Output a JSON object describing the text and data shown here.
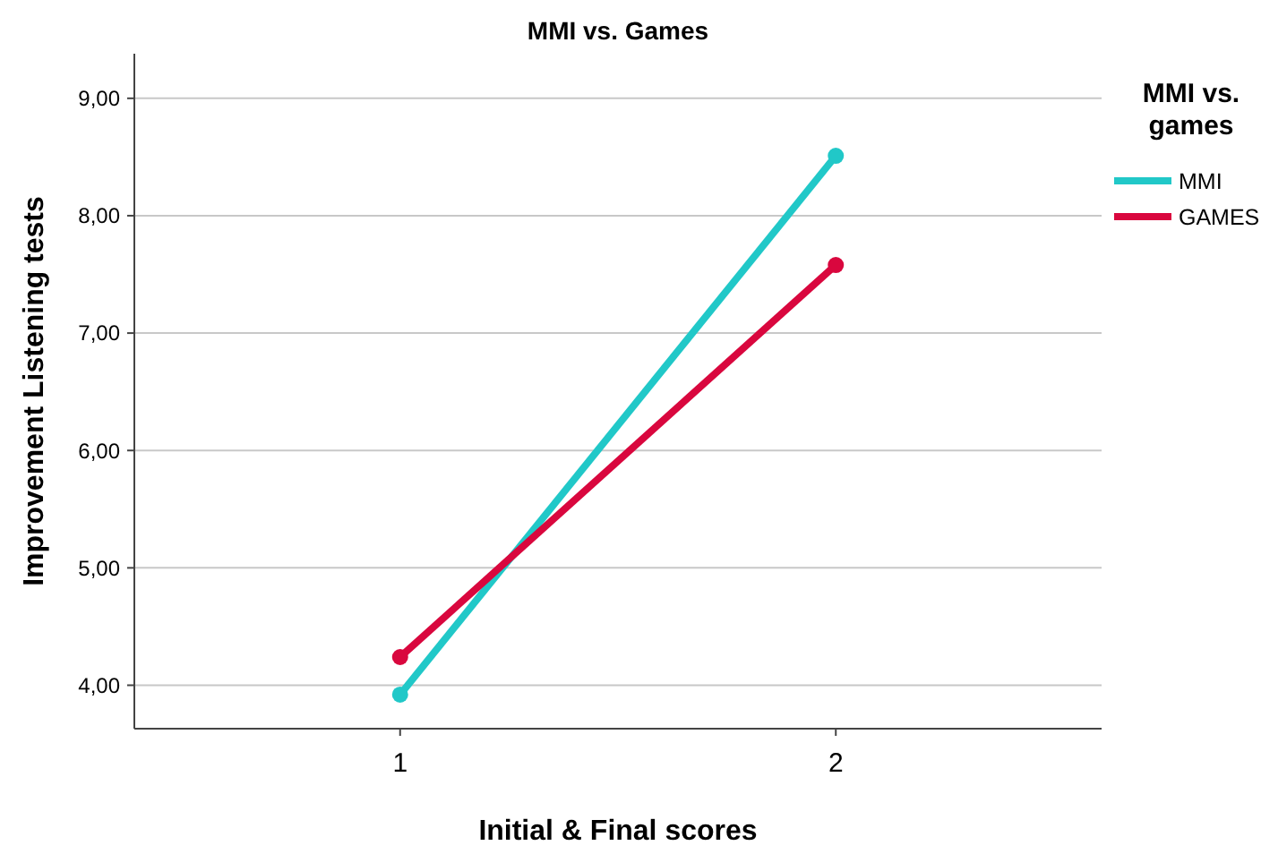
{
  "chart_data": {
    "type": "line",
    "title": "MMI vs. Games",
    "xlabel": "Initial & Final scores",
    "ylabel": "Improvement Listening tests",
    "legend_title": "MMI vs. games",
    "categories": [
      "1",
      "2"
    ],
    "series": [
      {
        "name": "MMI",
        "color": "#21c8c8",
        "values": [
          3.92,
          8.51
        ]
      },
      {
        "name": "GAMES",
        "color": "#d9073e",
        "values": [
          4.24,
          7.58
        ]
      }
    ],
    "ylim": [
      3.63,
      9.38
    ],
    "yticks": [
      {
        "value": 4,
        "label": "4,00"
      },
      {
        "value": 5,
        "label": "5,00"
      },
      {
        "value": 6,
        "label": "6,00"
      },
      {
        "value": 7,
        "label": "7,00"
      },
      {
        "value": 8,
        "label": "8,00"
      },
      {
        "value": 9,
        "label": "9,00"
      }
    ],
    "grid": "y",
    "legend": "right",
    "marker": "circle",
    "line_style": "solid"
  }
}
